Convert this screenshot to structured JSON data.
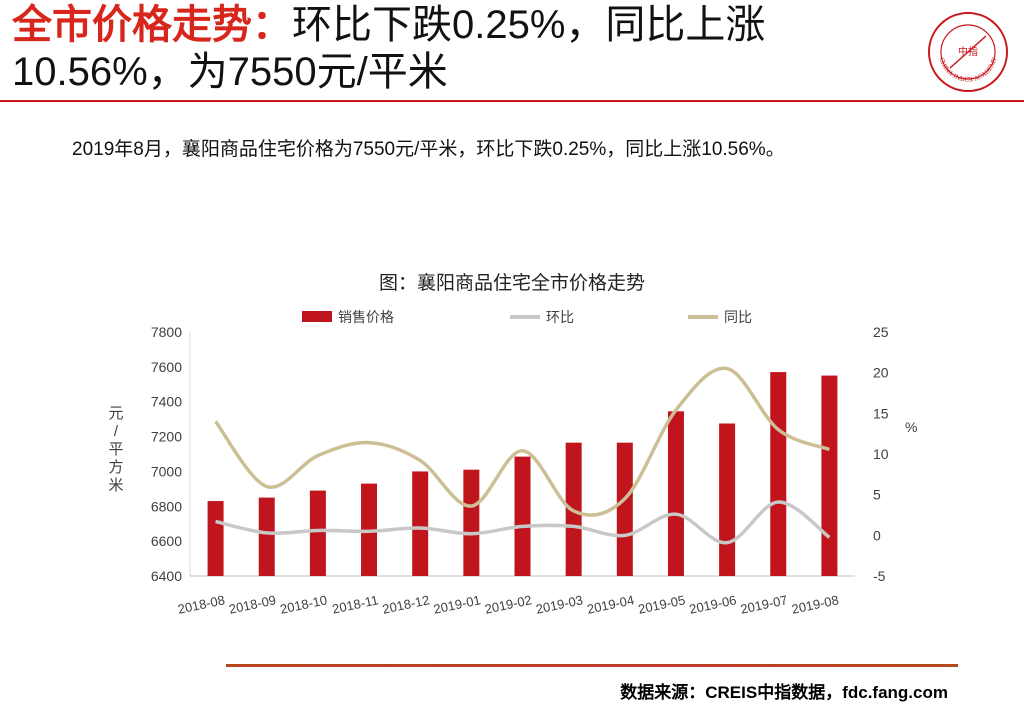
{
  "header": {
    "title_red": "全市价格走势：",
    "title_rest": "环比下跌0.25%，同比上涨10.56%，为7550元/平米",
    "logo_text": "CHINA INDEX ACADEMY",
    "logo_center": "中指"
  },
  "summary": "2019年8月，襄阳商品住宅价格为7550元/平米，环比下跌0.25%，同比上涨10.56%。",
  "colors": {
    "accent": "#c8161d",
    "bar": "#c0151d",
    "mom_line": "#c8c8c8",
    "yoy_line": "#cdbf95"
  },
  "chart_data": {
    "type": "bar",
    "title": "图：襄阳商品住宅全市价格走势",
    "categories": [
      "2018-08",
      "2018-09",
      "2018-10",
      "2018-11",
      "2018-12",
      "2019-01",
      "2019-02",
      "2019-03",
      "2019-04",
      "2019-05",
      "2019-06",
      "2019-07",
      "2019-08"
    ],
    "series": [
      {
        "name": "销售价格",
        "kind": "bar",
        "axis": "left",
        "values": [
          6830,
          6850,
          6890,
          6930,
          7000,
          7010,
          7085,
          7165,
          7165,
          7345,
          7275,
          7570,
          7550
        ]
      },
      {
        "name": "环比",
        "kind": "line",
        "axis": "right",
        "values": [
          1.7,
          0.3,
          0.6,
          0.5,
          0.9,
          0.2,
          1.1,
          1.1,
          0.0,
          2.6,
          -0.9,
          4.1,
          -0.25
        ]
      },
      {
        "name": "同比",
        "kind": "line",
        "axis": "right",
        "values": [
          14.0,
          6.0,
          9.8,
          11.4,
          9.2,
          3.6,
          10.4,
          3.0,
          4.5,
          15.4,
          20.5,
          13.0,
          10.56
        ]
      }
    ],
    "ylabel": "元/平方米",
    "ylabel_right": "%",
    "ylim": [
      6400,
      7800
    ],
    "ylim_right": [
      -5,
      25
    ],
    "yticks": [
      6400,
      6600,
      6800,
      7000,
      7200,
      7400,
      7600,
      7800
    ],
    "yticks_right": [
      -5,
      0,
      5,
      10,
      15,
      20,
      25
    ],
    "legend_position": "top"
  },
  "footer": {
    "source": "数据来源：CREIS中指数据，fdc.fang.com"
  }
}
